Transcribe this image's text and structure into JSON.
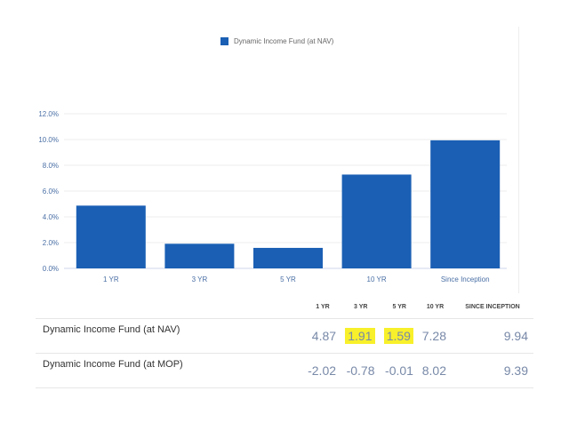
{
  "chart_data": {
    "type": "bar",
    "categories": [
      "1 YR",
      "3 YR",
      "5 YR",
      "10 YR",
      "Since Inception"
    ],
    "series": [
      {
        "name": "Dynamic Income Fund (at NAV)",
        "values": [
          4.87,
          1.91,
          1.59,
          7.28,
          9.94
        ]
      }
    ],
    "yticks": [
      "0.0%",
      "2.0%",
      "4.0%",
      "6.0%",
      "8.0%",
      "10.0%",
      "12.0%"
    ],
    "ylim": [
      0,
      12
    ],
    "grid": true,
    "legend_placement": "top-center",
    "colors": {
      "bar": "#1a5fb4",
      "axis_label": "#4a6fa5"
    }
  },
  "table": {
    "headers": [
      "1 YR",
      "3 YR",
      "5 YR",
      "10 YR",
      "SINCE INCEPTION"
    ],
    "rows": [
      {
        "name": "Dynamic Income Fund (at NAV)",
        "values": [
          "4.87",
          "1.91",
          "1.59",
          "7.28",
          "9.94"
        ],
        "highlighted": [
          false,
          true,
          true,
          false,
          false
        ]
      },
      {
        "name": "Dynamic Income Fund (at MOP)",
        "values": [
          "-2.02",
          "-0.78",
          "-0.01",
          "8.02",
          "9.39"
        ],
        "highlighted": [
          false,
          false,
          false,
          false,
          false
        ]
      }
    ],
    "highlight_color": "#f8f02a"
  }
}
